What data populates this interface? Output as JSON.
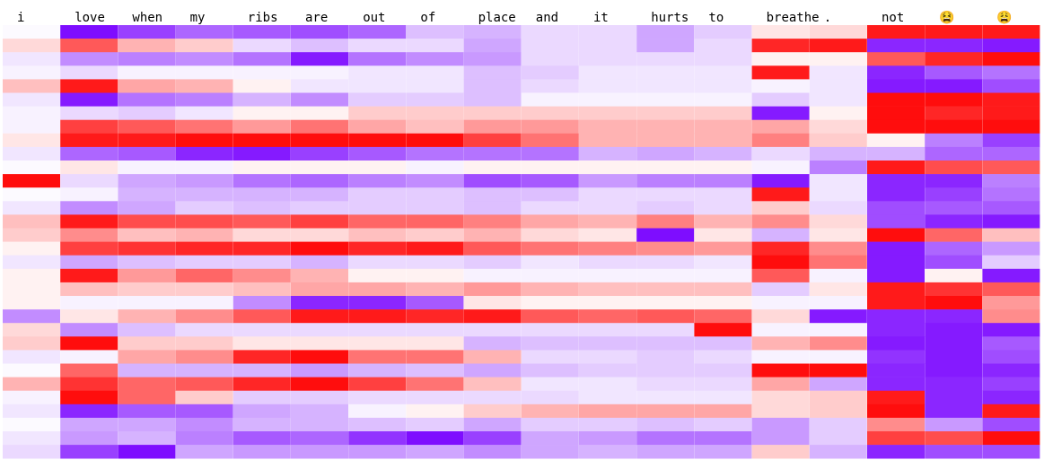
{
  "colors": {
    "negative": "#ff0000",
    "neutral": "#ffffff",
    "positive": "#7700ff"
  },
  "chart_data": {
    "type": "heatmap",
    "tokens": [
      "i",
      "love",
      "when",
      "my",
      "ribs",
      "are",
      "out",
      "of",
      "place",
      "and",
      "it",
      "hurts",
      "to",
      "breathe",
      ".",
      "not",
      "😫",
      "😩"
    ],
    "value_range": [
      -1,
      1
    ],
    "rows": 32,
    "values": [
      [
        0.02,
        0.95,
        0.75,
        0.6,
        0.65,
        0.7,
        0.6,
        0.25,
        0.3,
        0.15,
        0.15,
        0.35,
        0.2,
        -0.1,
        -0.15,
        -0.9,
        -0.9,
        -0.9
      ],
      [
        -0.15,
        -0.65,
        -0.3,
        -0.2,
        0.15,
        0.25,
        0.15,
        0.15,
        0.35,
        0.15,
        0.15,
        0.35,
        0.15,
        -0.85,
        -0.9,
        0.85,
        0.85,
        0.9
      ],
      [
        0.1,
        0.45,
        0.5,
        0.45,
        0.55,
        0.9,
        0.55,
        0.45,
        0.4,
        0.15,
        0.15,
        0.15,
        0.15,
        -0.05,
        -0.05,
        -0.65,
        -0.85,
        -0.95
      ],
      [
        0.05,
        0.15,
        0.05,
        0.05,
        0.05,
        0.05,
        0.1,
        0.1,
        0.25,
        0.2,
        0.1,
        0.1,
        0.1,
        -0.9,
        0.1,
        0.85,
        0.65,
        0.55
      ],
      [
        -0.25,
        -0.9,
        -0.35,
        -0.3,
        -0.05,
        0.1,
        0.1,
        0.1,
        0.25,
        0.15,
        0.1,
        0.1,
        0.1,
        0.05,
        0.1,
        0.9,
        0.9,
        0.7
      ],
      [
        0.1,
        0.9,
        0.55,
        0.5,
        0.3,
        0.45,
        0.2,
        0.2,
        0.25,
        0.05,
        0.05,
        0.05,
        0.05,
        0.2,
        0.1,
        -0.95,
        -0.95,
        -0.9
      ],
      [
        0.05,
        0.15,
        0.2,
        0.1,
        -0.05,
        -0.05,
        -0.2,
        -0.2,
        -0.2,
        -0.2,
        -0.2,
        -0.2,
        -0.2,
        0.9,
        -0.05,
        -0.95,
        -0.85,
        -0.9
      ],
      [
        0.05,
        -0.75,
        -0.65,
        -0.55,
        -0.4,
        -0.55,
        -0.35,
        -0.25,
        -0.4,
        -0.4,
        -0.3,
        -0.3,
        -0.3,
        -0.35,
        -0.15,
        -0.95,
        -0.95,
        -0.95
      ],
      [
        -0.1,
        -0.9,
        -0.9,
        -0.95,
        -0.95,
        -0.95,
        -0.95,
        -0.95,
        -0.75,
        -0.55,
        -0.3,
        -0.3,
        -0.3,
        -0.5,
        -0.2,
        -0.05,
        0.5,
        0.75
      ],
      [
        0.1,
        0.6,
        0.65,
        0.85,
        0.9,
        0.75,
        0.65,
        0.55,
        0.55,
        0.55,
        0.3,
        0.35,
        0.3,
        0.15,
        0.3,
        0.3,
        0.6,
        0.6
      ],
      [
        0.02,
        -0.1,
        0.05,
        0.05,
        -0.05,
        -0.05,
        -0.05,
        0.05,
        -0.05,
        -0.05,
        -0.05,
        -0.05,
        -0.05,
        0.05,
        0.5,
        -0.9,
        -0.7,
        -0.65
      ],
      [
        -0.95,
        0.15,
        0.35,
        0.4,
        0.55,
        0.6,
        0.5,
        0.45,
        0.7,
        0.65,
        0.4,
        0.5,
        0.5,
        0.9,
        0.1,
        0.85,
        0.85,
        0.5
      ],
      [
        0.02,
        0.05,
        0.3,
        0.3,
        0.3,
        0.3,
        0.2,
        0.2,
        0.25,
        0.25,
        0.15,
        0.15,
        0.15,
        -0.9,
        0.1,
        0.85,
        0.75,
        0.55
      ],
      [
        0.1,
        0.45,
        0.35,
        0.2,
        0.25,
        0.2,
        0.2,
        0.2,
        0.25,
        0.15,
        0.15,
        0.2,
        0.15,
        -0.2,
        0.15,
        0.7,
        0.65,
        0.65
      ],
      [
        -0.25,
        -0.9,
        -0.7,
        -0.7,
        -0.65,
        -0.75,
        -0.6,
        -0.6,
        -0.5,
        -0.35,
        -0.3,
        -0.5,
        -0.3,
        -0.45,
        -0.15,
        0.7,
        0.85,
        0.9
      ],
      [
        -0.2,
        -0.45,
        -0.25,
        -0.3,
        -0.15,
        -0.15,
        -0.25,
        -0.2,
        -0.3,
        -0.15,
        -0.1,
        0.95,
        -0.1,
        0.3,
        -0.1,
        -0.95,
        -0.6,
        -0.25
      ],
      [
        -0.05,
        -0.75,
        -0.8,
        -0.85,
        -0.85,
        -0.95,
        -0.85,
        -0.9,
        -0.65,
        -0.55,
        -0.5,
        -0.45,
        -0.4,
        -0.85,
        -0.45,
        0.9,
        0.6,
        0.4
      ],
      [
        0.1,
        0.35,
        0.25,
        0.2,
        0.2,
        0.3,
        0.15,
        0.15,
        0.2,
        0.1,
        0.15,
        0.15,
        0.1,
        -0.95,
        -0.55,
        0.9,
        0.7,
        0.2
      ],
      [
        -0.05,
        -0.9,
        -0.4,
        -0.6,
        -0.45,
        -0.3,
        -0.05,
        -0.05,
        0.05,
        0.05,
        0.05,
        0.05,
        0.05,
        -0.65,
        0.05,
        0.9,
        -0.05,
        0.9
      ],
      [
        -0.05,
        -0.25,
        -0.2,
        -0.2,
        -0.25,
        -0.35,
        -0.35,
        -0.3,
        -0.4,
        -0.3,
        -0.25,
        -0.25,
        -0.25,
        0.2,
        -0.1,
        -0.9,
        -0.8,
        -0.65
      ],
      [
        -0.05,
        0.05,
        0.05,
        0.05,
        0.45,
        0.85,
        0.85,
        0.65,
        -0.1,
        -0.05,
        -0.05,
        -0.05,
        -0.05,
        0.05,
        0.05,
        -0.9,
        -0.95,
        -0.4
      ],
      [
        0.45,
        -0.1,
        -0.3,
        -0.45,
        -0.65,
        -0.9,
        -0.9,
        -0.85,
        -0.9,
        -0.65,
        -0.6,
        -0.65,
        -0.6,
        -0.15,
        0.9,
        0.85,
        0.85,
        -0.45
      ],
      [
        -0.15,
        0.45,
        0.25,
        0.15,
        0.15,
        0.15,
        0.15,
        0.15,
        0.15,
        0.15,
        0.15,
        0.15,
        -0.95,
        0.05,
        0.05,
        0.85,
        0.9,
        0.9
      ],
      [
        -0.2,
        -0.95,
        -0.2,
        -0.2,
        -0.1,
        -0.1,
        -0.1,
        -0.1,
        0.3,
        0.25,
        0.25,
        0.25,
        0.25,
        -0.3,
        -0.45,
        0.9,
        0.9,
        0.65
      ],
      [
        0.1,
        0.05,
        -0.35,
        -0.45,
        -0.85,
        -0.95,
        -0.55,
        -0.55,
        -0.3,
        0.15,
        0.15,
        0.2,
        0.15,
        0.05,
        0.05,
        0.8,
        0.9,
        0.7
      ],
      [
        0.02,
        -0.6,
        0.3,
        0.3,
        0.3,
        0.4,
        0.3,
        0.25,
        0.35,
        0.25,
        0.2,
        0.2,
        0.2,
        -0.95,
        -0.95,
        0.85,
        0.9,
        0.85
      ],
      [
        -0.3,
        -0.8,
        -0.6,
        -0.65,
        -0.85,
        -0.95,
        -0.75,
        -0.55,
        -0.25,
        0.1,
        0.1,
        0.15,
        0.15,
        -0.35,
        0.35,
        0.85,
        0.85,
        0.75
      ],
      [
        0.05,
        -0.95,
        -0.6,
        -0.2,
        0.2,
        0.2,
        0.15,
        0.15,
        0.15,
        0.15,
        0.1,
        0.1,
        0.1,
        -0.15,
        -0.2,
        -0.9,
        0.85,
        0.85
      ],
      [
        0.1,
        0.85,
        0.65,
        0.65,
        0.35,
        0.3,
        0.05,
        -0.05,
        -0.2,
        -0.3,
        -0.35,
        -0.35,
        -0.35,
        -0.15,
        -0.2,
        -0.95,
        0.85,
        -0.9
      ],
      [
        0.02,
        0.35,
        0.35,
        0.45,
        0.3,
        0.3,
        0.25,
        0.2,
        0.35,
        0.2,
        0.2,
        0.25,
        0.2,
        0.4,
        0.2,
        -0.45,
        0.4,
        0.7
      ],
      [
        0.1,
        0.4,
        0.3,
        0.5,
        0.65,
        0.6,
        0.8,
        0.95,
        0.75,
        0.35,
        0.4,
        0.55,
        0.55,
        0.4,
        0.2,
        -0.75,
        -0.7,
        -0.95
      ],
      [
        0.15,
        0.75,
        0.95,
        0.35,
        0.4,
        0.4,
        0.4,
        0.35,
        0.45,
        0.35,
        0.3,
        0.35,
        0.35,
        -0.2,
        0.3,
        0.85,
        0.7,
        0.7
      ]
    ]
  }
}
